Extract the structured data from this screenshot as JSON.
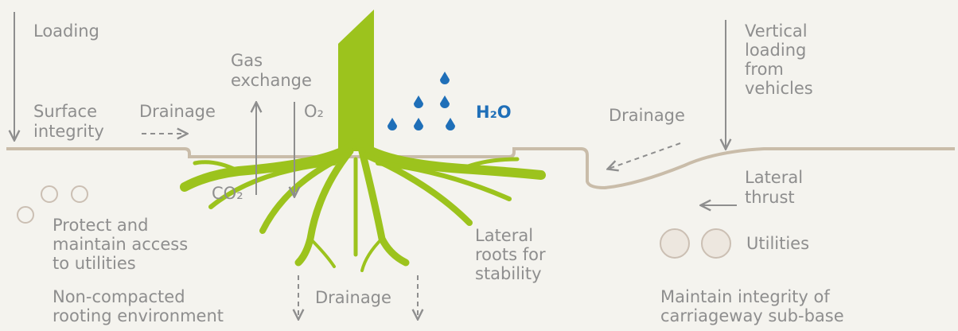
{
  "labels": {
    "loading": [
      "Loading"
    ],
    "surface_integrity": [
      "Surface",
      "integrity"
    ],
    "drainage_left": [
      "Drainage"
    ],
    "gas_exchange": [
      "Gas",
      "exchange"
    ],
    "o2": "O₂",
    "co2": "CO₂",
    "h2o": "H₂O",
    "vertical_loading": [
      "Vertical",
      "loading",
      "from",
      "vehicles"
    ],
    "drainage_right": [
      "Drainage"
    ],
    "lateral_thrust": [
      "Lateral",
      "thrust"
    ],
    "utilities": "Utilities",
    "protect": [
      "Protect and",
      "maintain access",
      "to utilities"
    ],
    "non_compacted": [
      "Non-compacted",
      "rooting environment"
    ],
    "drainage_bottom": "Drainage",
    "lateral_roots": [
      "Lateral",
      "roots for",
      "stability"
    ],
    "maintain": [
      "Maintain integrity of",
      "carriageway sub-base"
    ]
  }
}
